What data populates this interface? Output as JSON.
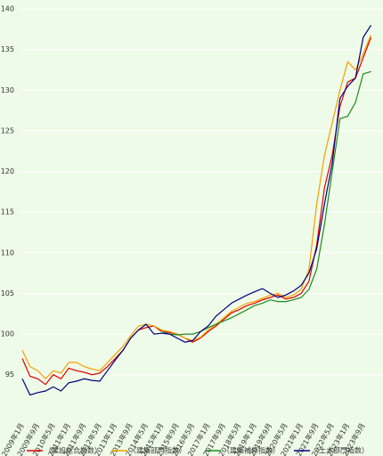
{
  "chart_data": {
    "type": "line",
    "categories": [
      "2009年1月",
      null,
      "2009年9月",
      null,
      "2010年5月",
      null,
      "2011年1月",
      null,
      "2011年9月",
      null,
      "2012年5月",
      null,
      "2013年1月",
      null,
      "2013年9月",
      null,
      "2014年5月",
      null,
      "2015年1月",
      null,
      "2015年9月",
      null,
      "2016年5月",
      null,
      "2017年1月",
      null,
      "2017年9月",
      null,
      "2018年5月",
      null,
      "2019年1月",
      null,
      "2019年9月",
      null,
      "2020年5月",
      null,
      "2021年1月",
      null,
      "2021年9月",
      null,
      "2022年5月",
      null,
      "2023年1月",
      null,
      "2023年9月",
      null
    ],
    "series": [
      {
        "name": "（建設総合指数）",
        "color": "#e00000",
        "values": [
          97,
          94.8,
          94.5,
          93.8,
          95.0,
          94.5,
          95.8,
          95.5,
          95.3,
          95.0,
          95.2,
          96.0,
          97.0,
          98.0,
          99.5,
          100.5,
          100.8,
          101.0,
          100.3,
          100.2,
          100.0,
          99.5,
          99.0,
          99.5,
          100.3,
          101.0,
          101.8,
          102.6,
          103.0,
          103.5,
          103.8,
          104.2,
          104.5,
          104.8,
          104.3,
          104.5,
          105.0,
          106.5,
          111.0,
          118.0,
          122.0,
          128.0,
          131.0,
          131.5,
          134.0,
          136.5
        ]
      },
      {
        "name": "（建築部門指数）",
        "color": "#f5a000",
        "values": [
          98.0,
          96.0,
          95.5,
          94.5,
          95.5,
          95.2,
          96.5,
          96.5,
          96.0,
          95.7,
          95.5,
          96.5,
          97.5,
          98.5,
          99.8,
          101.0,
          101.2,
          101.0,
          100.5,
          100.3,
          100.0,
          99.5,
          99.2,
          99.6,
          100.5,
          101.2,
          102.0,
          102.8,
          103.3,
          103.8,
          104.0,
          104.4,
          104.8,
          105.0,
          104.5,
          104.8,
          105.5,
          108.0,
          116.0,
          122.0,
          126.0,
          130.0,
          133.5,
          132.5,
          134.5,
          136.8
        ]
      },
      {
        "name": "（建築補修指数）",
        "color": "#1e8c1e",
        "values": [
          null,
          null,
          null,
          null,
          null,
          null,
          null,
          null,
          null,
          null,
          null,
          null,
          null,
          null,
          null,
          null,
          null,
          null,
          100.3,
          100.0,
          99.9,
          100.0,
          100.0,
          100.3,
          100.8,
          101.2,
          101.6,
          102.0,
          102.5,
          103.0,
          103.5,
          103.8,
          104.2,
          104.0,
          104.0,
          104.2,
          104.5,
          105.5,
          108.0,
          113.5,
          120.0,
          126.5,
          126.8,
          128.5,
          132.0,
          132.3
        ]
      },
      {
        "name": "（土木部門指数）",
        "color": "#00007f",
        "values": [
          94.5,
          92.5,
          92.8,
          93.0,
          93.5,
          93.0,
          94.0,
          94.2,
          94.5,
          94.3,
          94.2,
          95.5,
          96.8,
          98.0,
          99.5,
          100.5,
          101.2,
          100.0,
          100.1,
          100.0,
          99.5,
          99.0,
          99.2,
          100.3,
          101.0,
          102.2,
          103.0,
          103.8,
          104.3,
          104.8,
          105.2,
          105.6,
          105.0,
          104.5,
          104.8,
          105.3,
          106.0,
          107.5,
          110.5,
          116.0,
          121.0,
          129.0,
          130.5,
          131.5,
          136.5,
          138.0
        ]
      }
    ],
    "ylim": [
      89.6,
      140
    ],
    "yticks": [
      95,
      100,
      105,
      110,
      115,
      120,
      125,
      130,
      135,
      140
    ],
    "grid": true,
    "legend": "bottom"
  }
}
